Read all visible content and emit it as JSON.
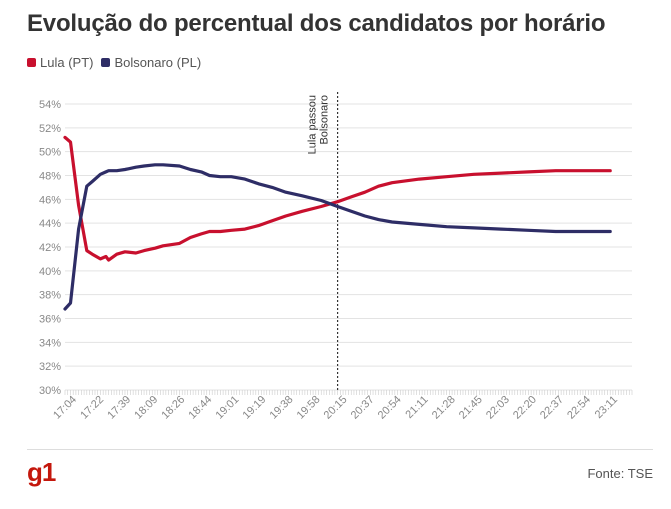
{
  "title": "Evolução do percentual dos candidatos por horário",
  "legend": [
    {
      "label": "Lula (PT)",
      "color": "#c8102e"
    },
    {
      "label": "Bolsonaro (PL)",
      "color": "#2e2d66"
    }
  ],
  "footer": {
    "brand": "g1",
    "source": "Fonte: TSE"
  },
  "chart_data": {
    "type": "line",
    "y_ticks": [
      "30%",
      "32%",
      "34%",
      "36%",
      "38%",
      "40%",
      "42%",
      "44%",
      "46%",
      "48%",
      "50%",
      "52%",
      "54%"
    ],
    "ylim": [
      30,
      54
    ],
    "x_ticks": [
      "17:04",
      "17:22",
      "17:39",
      "18:09",
      "18:26",
      "18:44",
      "19:01",
      "19:19",
      "19:38",
      "19:58",
      "20:15",
      "20:37",
      "20:54",
      "21:11",
      "21:28",
      "21:45",
      "22:03",
      "22:20",
      "22:37",
      "22:54",
      "23:11"
    ],
    "annotation": {
      "label": [
        "Lula passou",
        "Bolsonaro"
      ],
      "x_index": 100
    },
    "x_count": 209,
    "grid": true,
    "series": [
      {
        "name": "Lula (PT)",
        "color": "#c8102e",
        "points": [
          [
            0,
            51.2
          ],
          [
            2,
            50.8
          ],
          [
            5,
            45.5
          ],
          [
            8,
            41.7
          ],
          [
            10,
            41.4
          ],
          [
            13,
            41.0
          ],
          [
            15,
            41.2
          ],
          [
            16,
            40.9
          ],
          [
            19,
            41.4
          ],
          [
            22,
            41.6
          ],
          [
            26,
            41.5
          ],
          [
            29,
            41.7
          ],
          [
            33,
            41.9
          ],
          [
            36,
            42.1
          ],
          [
            42,
            42.3
          ],
          [
            46,
            42.8
          ],
          [
            50,
            43.1
          ],
          [
            53,
            43.3
          ],
          [
            57,
            43.3
          ],
          [
            61,
            43.4
          ],
          [
            66,
            43.5
          ],
          [
            71,
            43.8
          ],
          [
            76,
            44.2
          ],
          [
            81,
            44.6
          ],
          [
            87,
            45.0
          ],
          [
            94,
            45.4
          ],
          [
            100,
            45.8
          ],
          [
            105,
            46.2
          ],
          [
            110,
            46.6
          ],
          [
            115,
            47.1
          ],
          [
            120,
            47.4
          ],
          [
            130,
            47.7
          ],
          [
            140,
            47.9
          ],
          [
            150,
            48.1
          ],
          [
            160,
            48.2
          ],
          [
            170,
            48.3
          ],
          [
            180,
            48.4
          ],
          [
            190,
            48.4
          ],
          [
            200,
            48.4
          ]
        ]
      },
      {
        "name": "Bolsonaro (PL)",
        "color": "#2e2d66",
        "points": [
          [
            0,
            36.8
          ],
          [
            2,
            37.3
          ],
          [
            5,
            43.5
          ],
          [
            8,
            47.1
          ],
          [
            10,
            47.5
          ],
          [
            13,
            48.1
          ],
          [
            15,
            48.3
          ],
          [
            16,
            48.4
          ],
          [
            19,
            48.4
          ],
          [
            22,
            48.5
          ],
          [
            26,
            48.7
          ],
          [
            29,
            48.8
          ],
          [
            33,
            48.9
          ],
          [
            36,
            48.9
          ],
          [
            42,
            48.8
          ],
          [
            46,
            48.5
          ],
          [
            50,
            48.3
          ],
          [
            53,
            48.0
          ],
          [
            57,
            47.9
          ],
          [
            61,
            47.9
          ],
          [
            66,
            47.7
          ],
          [
            71,
            47.3
          ],
          [
            76,
            47.0
          ],
          [
            81,
            46.6
          ],
          [
            87,
            46.3
          ],
          [
            94,
            45.9
          ],
          [
            100,
            45.4
          ],
          [
            105,
            45.0
          ],
          [
            110,
            44.6
          ],
          [
            115,
            44.3
          ],
          [
            120,
            44.1
          ],
          [
            130,
            43.9
          ],
          [
            140,
            43.7
          ],
          [
            150,
            43.6
          ],
          [
            160,
            43.5
          ],
          [
            170,
            43.4
          ],
          [
            180,
            43.3
          ],
          [
            190,
            43.3
          ],
          [
            200,
            43.3
          ]
        ]
      }
    ]
  }
}
